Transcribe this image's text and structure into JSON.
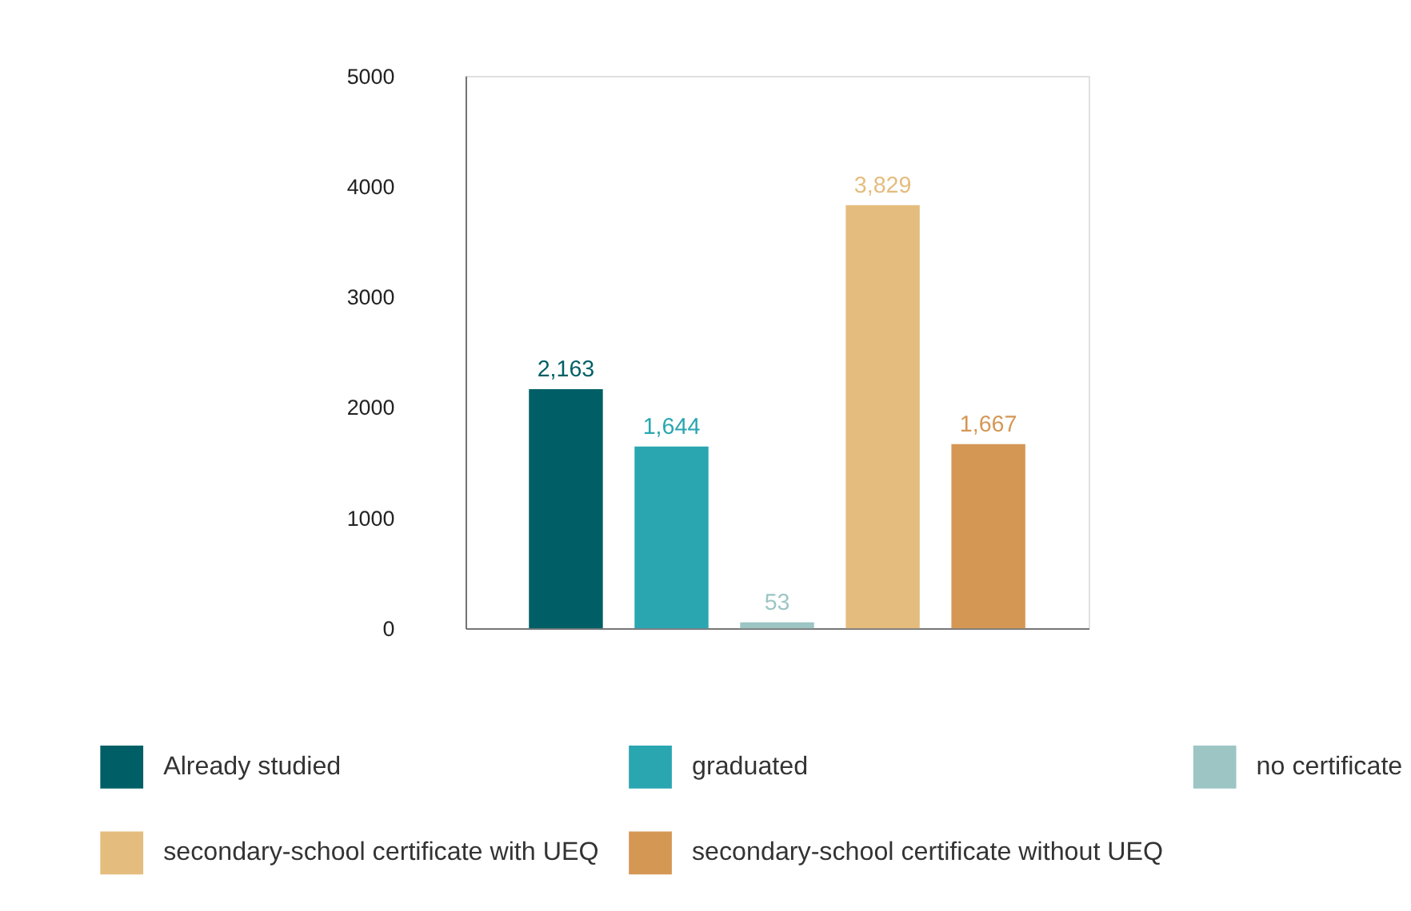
{
  "chart_data": {
    "type": "bar",
    "categories": [
      null,
      null,
      null,
      null,
      null
    ],
    "series": [
      {
        "name": "Already studied",
        "color": "#005f66",
        "values": [
          2163,
          null,
          null,
          null,
          null
        ],
        "value_labels": [
          "2,163",
          null,
          null,
          null,
          null
        ]
      },
      {
        "name": "graduated",
        "color": "#2aa6b1",
        "values": [
          null,
          1644,
          null,
          null,
          null
        ],
        "value_labels": [
          null,
          "1,644",
          null,
          null,
          null
        ]
      },
      {
        "name": "no certificate",
        "color": "#9cc5c4",
        "values": [
          null,
          null,
          53,
          null,
          null
        ],
        "value_labels": [
          null,
          null,
          "53",
          null,
          null
        ]
      },
      {
        "name": "secondary-school certificate with UEQ",
        "color": "#e4bc7d",
        "values": [
          null,
          null,
          null,
          3829,
          null
        ],
        "value_labels": [
          null,
          null,
          null,
          "3,829",
          null
        ]
      },
      {
        "name": "secondary-school certificate without UEQ",
        "color": "#d59754",
        "values": [
          null,
          null,
          null,
          null,
          1667
        ],
        "value_labels": [
          null,
          null,
          null,
          null,
          "1,667"
        ]
      }
    ],
    "ylim": [
      0,
      5000
    ],
    "yticks": [
      0,
      1000,
      2000,
      3000,
      4000,
      5000
    ],
    "grid": false,
    "legend": "bottom",
    "tick_labels": "y"
  }
}
